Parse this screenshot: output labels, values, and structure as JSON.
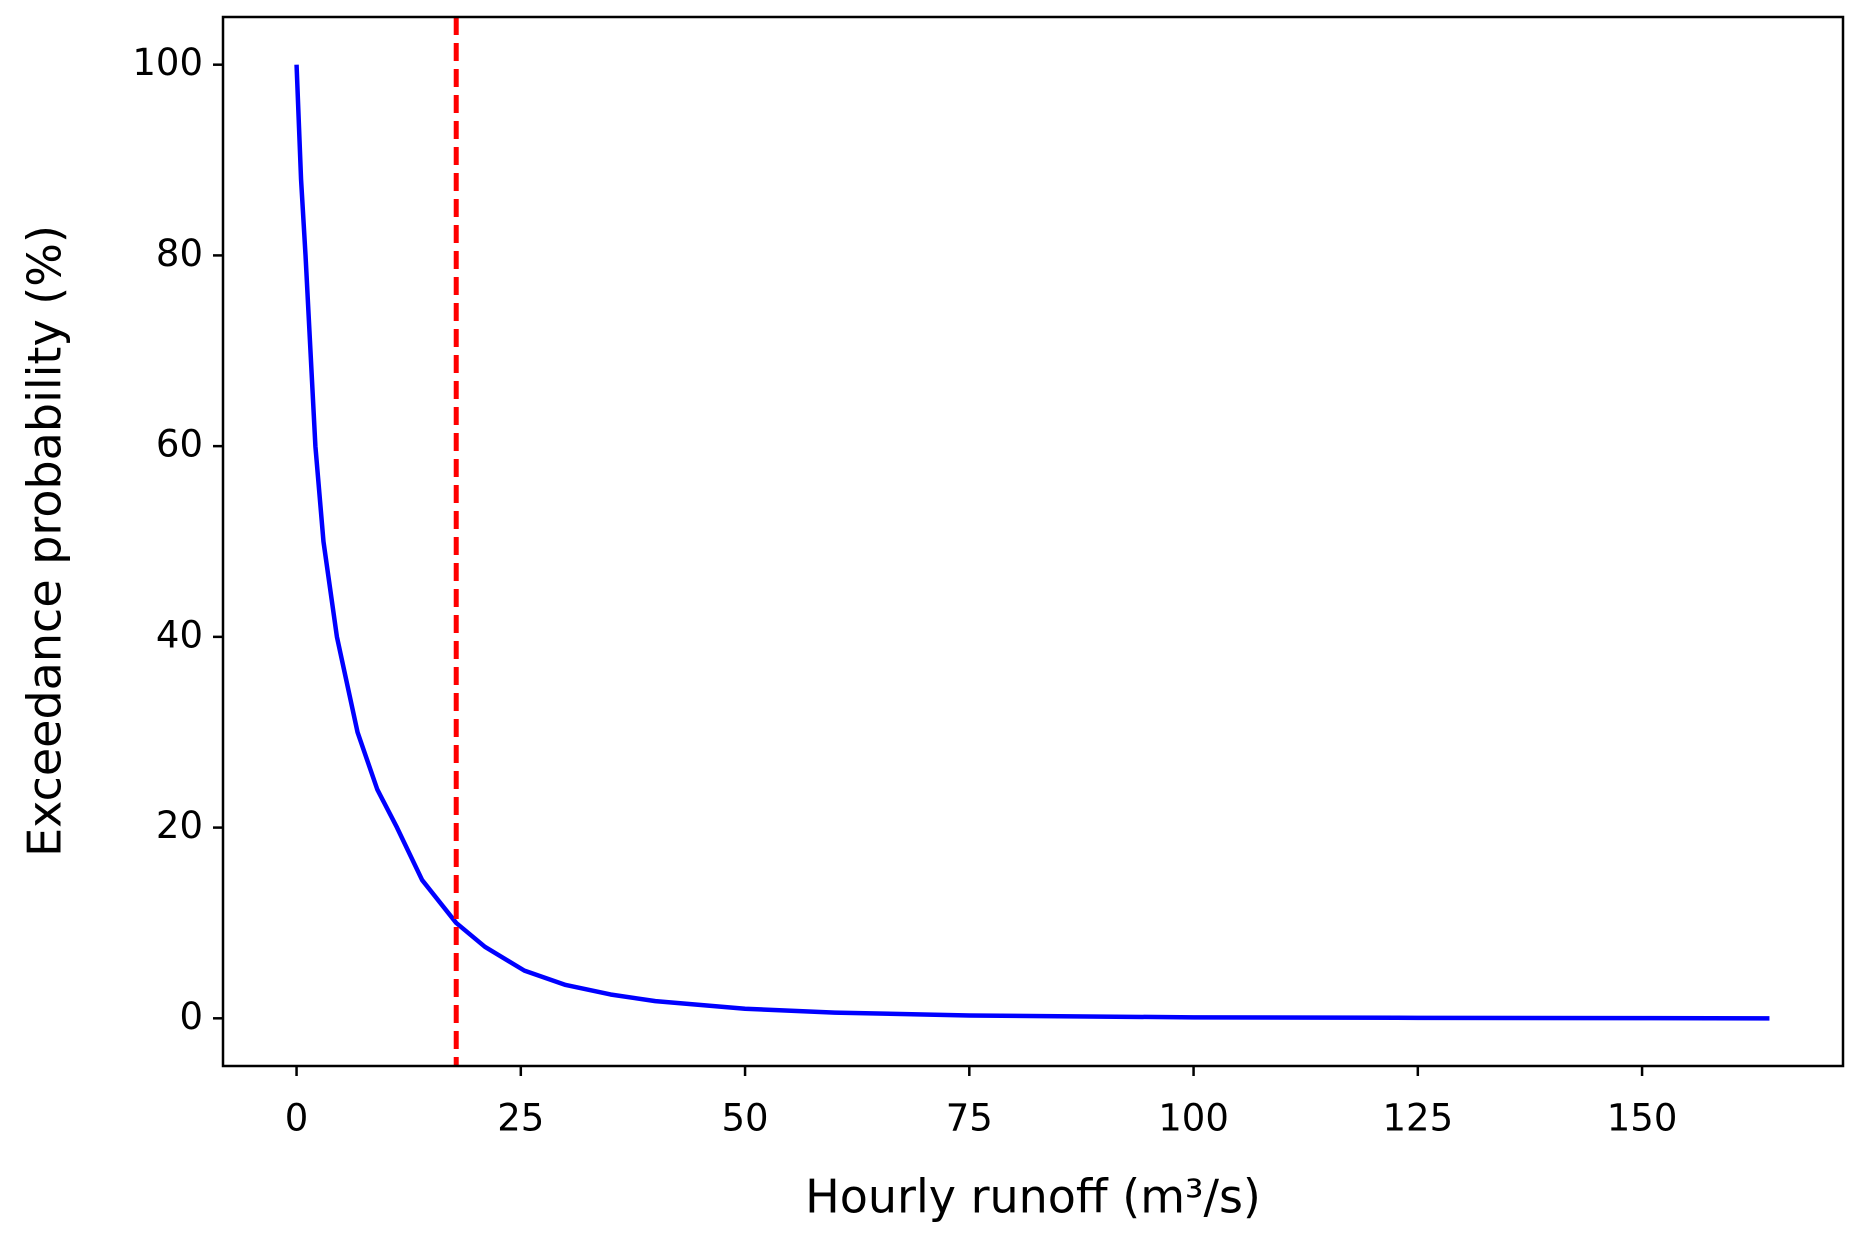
{
  "chart_data": {
    "type": "line",
    "xlabel": "Hourly runoff (m³/s)",
    "ylabel": "Exceedance probability (%)",
    "x": [
      0,
      0.5,
      1,
      2.1,
      3,
      4.5,
      6.8,
      9,
      11.2,
      14,
      17.8,
      21,
      25.4,
      30,
      35,
      40,
      50,
      60,
      75,
      100,
      125,
      150,
      164.2
    ],
    "series": [
      {
        "color": "#0000ff",
        "values": [
          100,
          88,
          80,
          60,
          50,
          40,
          30,
          24,
          20,
          14.5,
          10,
          7.5,
          5,
          3.5,
          2.5,
          1.8,
          1,
          0.6,
          0.3,
          0.1,
          0.05,
          0.02,
          0
        ]
      }
    ],
    "vlines": [
      {
        "x": 17.8,
        "color": "#ff0000",
        "style": "dashed"
      }
    ],
    "xlim": [
      -8.2,
      172.4
    ],
    "xticks": [
      0,
      25,
      50,
      75,
      100,
      125,
      150
    ],
    "ylim": [
      -5,
      105
    ],
    "yticks": [
      0,
      20,
      40,
      60,
      80,
      100
    ],
    "grid": false
  }
}
